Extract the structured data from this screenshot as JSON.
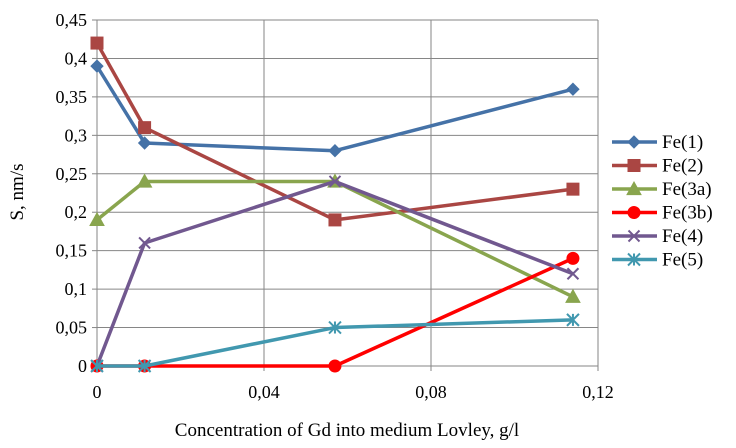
{
  "chart_data": {
    "type": "line",
    "xlabel": "Concentration of Gd into medium Lovley, g/l",
    "ylabel": "S, nm/s",
    "xlim": [
      0,
      0.12
    ],
    "ylim": [
      0,
      0.45
    ],
    "x_ticks": [
      0,
      0.04,
      0.08,
      0.12
    ],
    "x_tick_labels": [
      "0",
      "0,04",
      "0,08",
      "0,12"
    ],
    "y_ticks": [
      0,
      0.05,
      0.1,
      0.15,
      0.2,
      0.25,
      0.3,
      0.35,
      0.4,
      0.45
    ],
    "y_tick_labels": [
      "0",
      "0,05",
      "0,1",
      "0,15",
      "0,2",
      "0,25",
      "0,3",
      "0,35",
      "0,4",
      "0,45"
    ],
    "grid": true,
    "legend_position": "right",
    "x": [
      0,
      0.0114,
      0.057,
      0.114
    ],
    "series": [
      {
        "name": "Fe(1)",
        "values": [
          0.39,
          0.29,
          0.28,
          0.36
        ],
        "color": "#4572a7",
        "marker": "diamond"
      },
      {
        "name": "Fe(2)",
        "values": [
          0.42,
          0.31,
          0.19,
          0.23
        ],
        "color": "#aa4643",
        "marker": "square"
      },
      {
        "name": "Fe(3a)",
        "values": [
          0.19,
          0.24,
          0.24,
          0.09
        ],
        "color": "#89a54e",
        "marker": "triangle"
      },
      {
        "name": "Fe(3b)",
        "values": [
          0,
          0,
          0,
          0.14
        ],
        "color": "#ff0000",
        "marker": "circle"
      },
      {
        "name": "Fe(4)",
        "values": [
          0,
          0.16,
          0.24,
          0.12
        ],
        "color": "#71588f",
        "marker": "x"
      },
      {
        "name": "Fe(5)",
        "values": [
          0,
          0,
          0.05,
          0.06
        ],
        "color": "#4198af",
        "marker": "star"
      }
    ]
  }
}
